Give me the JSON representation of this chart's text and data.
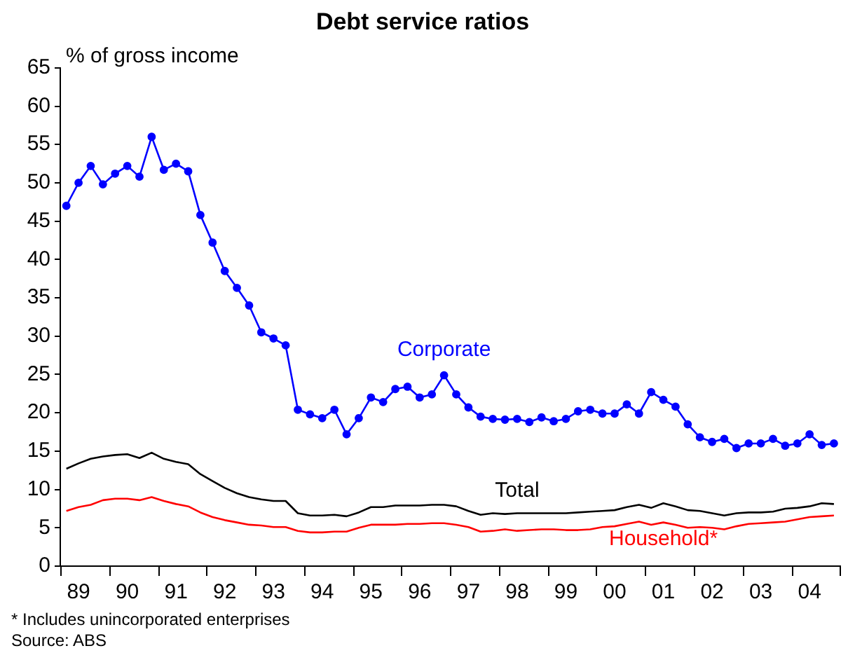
{
  "chart_data": {
    "type": "line",
    "title": "Debt service ratios",
    "ylabel": "% of gross income",
    "categories": [
      null,
      "89",
      null,
      null,
      null,
      "90",
      null,
      null,
      null,
      "91",
      null,
      null,
      null,
      "92",
      null,
      null,
      null,
      "93",
      null,
      null,
      null,
      "94",
      null,
      null,
      null,
      "95",
      null,
      null,
      null,
      "96",
      null,
      null,
      null,
      "97",
      null,
      null,
      null,
      "98",
      null,
      null,
      null,
      "99",
      null,
      null,
      null,
      "00",
      null,
      null,
      null,
      "01",
      null,
      null,
      null,
      "02",
      null,
      null,
      null,
      "03",
      null,
      null,
      null,
      "04",
      null,
      null
    ],
    "series": [
      {
        "name": "Corporate",
        "color": "#0000ff",
        "marker": "circle",
        "values": [
          47.0,
          50.0,
          52.2,
          49.8,
          51.2,
          52.2,
          50.8,
          56.0,
          51.7,
          52.5,
          51.5,
          45.8,
          42.2,
          38.5,
          36.3,
          34.0,
          30.5,
          29.7,
          28.8,
          20.4,
          19.8,
          19.3,
          20.4,
          17.2,
          19.3,
          22.0,
          21.4,
          23.1,
          23.4,
          22.0,
          22.4,
          24.9,
          22.4,
          20.7,
          19.5,
          19.2,
          19.1,
          19.2,
          18.8,
          19.4,
          18.9,
          19.2,
          20.2,
          20.4,
          19.9,
          19.9,
          21.1,
          19.9,
          22.7,
          21.7,
          20.8,
          18.5,
          16.8,
          16.2,
          16.6,
          15.4,
          16.0,
          16.0,
          16.6,
          15.7,
          16.0,
          17.2,
          15.8,
          16.0
        ]
      },
      {
        "name": "Total",
        "color": "#000000",
        "values": [
          12.7,
          13.4,
          14.0,
          14.3,
          14.5,
          14.6,
          14.1,
          14.8,
          14.0,
          13.6,
          13.3,
          12.0,
          11.1,
          10.2,
          9.5,
          9.0,
          8.7,
          8.5,
          8.5,
          6.9,
          6.6,
          6.6,
          6.7,
          6.5,
          7.0,
          7.7,
          7.7,
          7.9,
          7.9,
          7.9,
          8.0,
          8.0,
          7.8,
          7.2,
          6.7,
          6.9,
          6.8,
          6.9,
          6.9,
          6.9,
          6.9,
          6.9,
          7.0,
          7.1,
          7.2,
          7.3,
          7.7,
          8.0,
          7.6,
          8.2,
          7.8,
          7.3,
          7.2,
          6.9,
          6.6,
          6.9,
          7.0,
          7.0,
          7.1,
          7.5,
          7.6,
          7.8,
          8.2,
          8.1
        ]
      },
      {
        "name": "Household*",
        "color": "#ff0000",
        "values": [
          7.2,
          7.7,
          8.0,
          8.6,
          8.8,
          8.8,
          8.6,
          9.0,
          8.5,
          8.1,
          7.8,
          7.0,
          6.4,
          6.0,
          5.7,
          5.4,
          5.3,
          5.1,
          5.1,
          4.6,
          4.4,
          4.4,
          4.5,
          4.5,
          5.0,
          5.4,
          5.4,
          5.4,
          5.5,
          5.5,
          5.6,
          5.6,
          5.4,
          5.1,
          4.5,
          4.6,
          4.8,
          4.6,
          4.7,
          4.8,
          4.8,
          4.7,
          4.7,
          4.8,
          5.1,
          5.2,
          5.5,
          5.8,
          5.4,
          5.7,
          5.4,
          5.0,
          5.1,
          5.0,
          4.8,
          5.2,
          5.5,
          5.6,
          5.7,
          5.8,
          6.1,
          6.4,
          6.5,
          6.6
        ]
      }
    ],
    "ylim": [
      0,
      65
    ],
    "yticks": [
      0,
      5,
      10,
      15,
      20,
      25,
      30,
      35,
      40,
      45,
      50,
      55,
      60,
      65
    ],
    "grid": false,
    "legend": false,
    "annotations": [
      "* Includes unincorporated enterprises",
      "Source: ABS"
    ]
  }
}
